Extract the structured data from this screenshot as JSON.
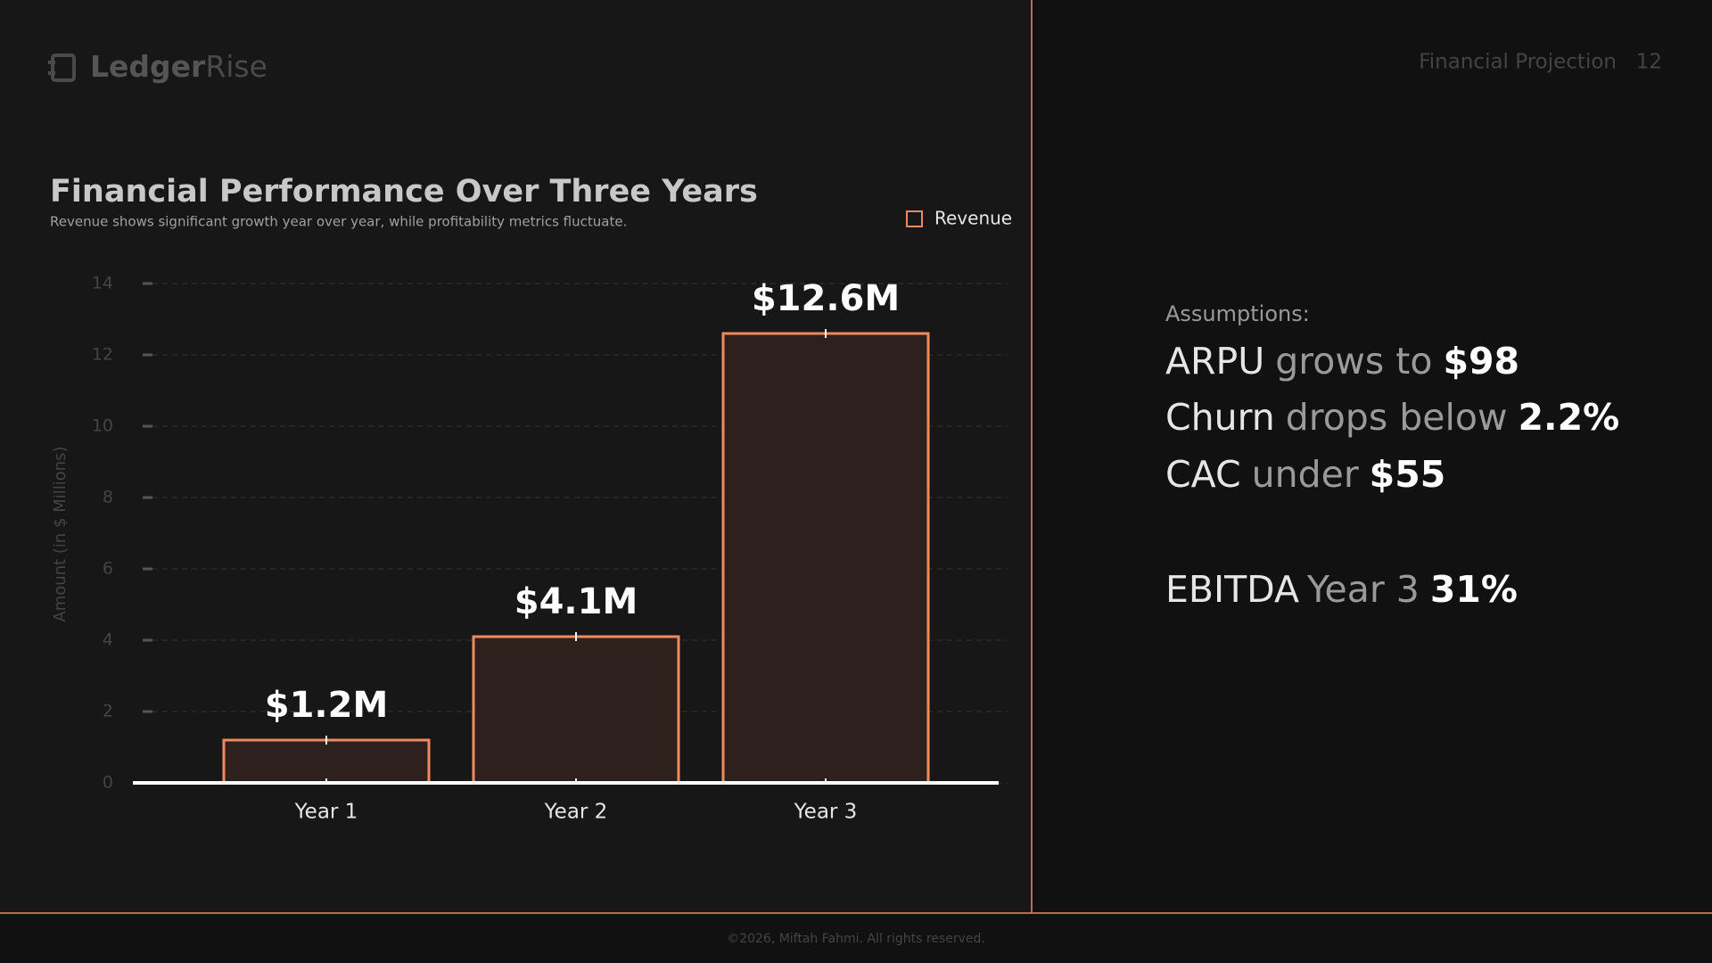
{
  "header": {
    "brand_bold": "Ledger",
    "brand_light": "Rise",
    "section": "Financial Projection",
    "page": "12"
  },
  "chart_data": {
    "type": "bar",
    "title": "Financial Performance Over Three Years",
    "subtitle": "Revenue shows significant growth year over year, while profitability metrics fluctuate.",
    "y_label": "Amount (in $ Millions)",
    "categories": [
      "Year 1",
      "Year 2",
      "Year 3"
    ],
    "series": [
      {
        "name": "Revenue",
        "color": "#f08a5d",
        "values": [
          1.2,
          4.1,
          12.6
        ],
        "value_labels": [
          "$1.2M",
          "$4.1M",
          "$12.6M"
        ]
      }
    ],
    "ylim": [
      0,
      14
    ],
    "yticks": [
      0,
      2,
      4,
      6,
      8,
      10,
      12,
      14
    ],
    "grid": true
  },
  "assumptions": {
    "heading": "Assumptions:",
    "items": [
      {
        "metric": "ARPU",
        "text": "grows to",
        "value": "$98"
      },
      {
        "metric": "Churn",
        "text": "drops below",
        "value": "2.2%"
      },
      {
        "metric": "CAC",
        "text": "under",
        "value": "$55"
      }
    ],
    "ebitda": {
      "metric": "EBITDA",
      "text": "Year 3",
      "value": "31%"
    }
  },
  "footer": "©2026, Miftah Fahmi. All rights reserved."
}
